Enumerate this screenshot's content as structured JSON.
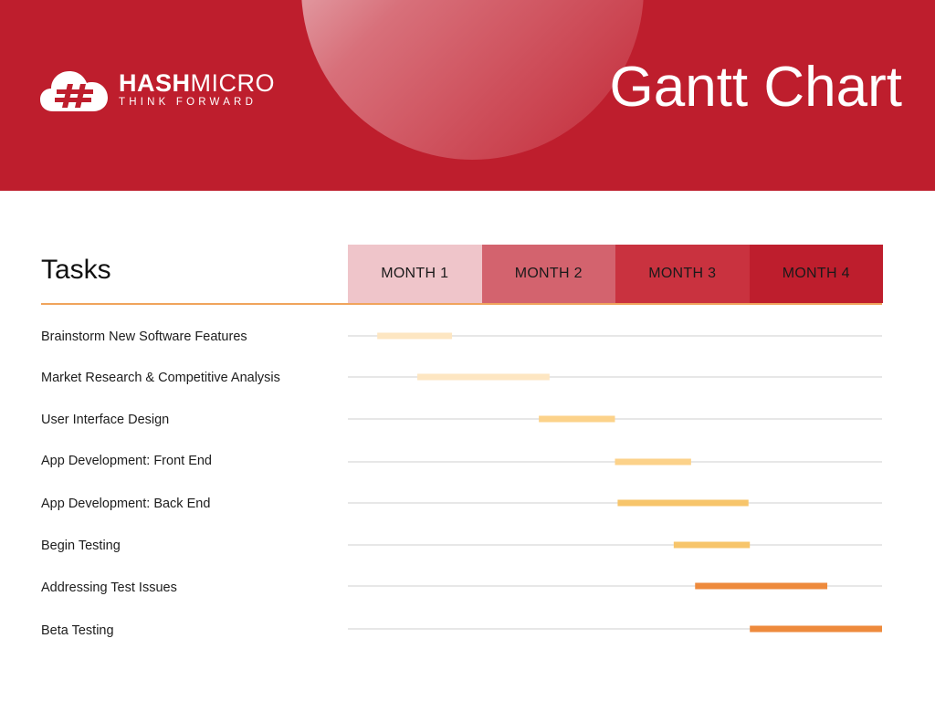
{
  "brand": {
    "name_bold": "HASH",
    "name_light": "MICRO",
    "tagline": "THINK FORWARD"
  },
  "title": "Gantt Chart",
  "tasks_heading": "Tasks",
  "colors": {
    "header_red": "#be1e2d",
    "month_1": "#efc5ca",
    "month_2": "#d3636e",
    "month_3": "#c9323f",
    "month_4": "#be1e2d",
    "grid_line": "#cfcfcf",
    "rule_orange": "#f0a45c"
  },
  "chart_data": {
    "type": "gantt",
    "x_unit": "month",
    "xlim": [
      0,
      4
    ],
    "categories": [
      "MONTH 1",
      "MONTH 2",
      "MONTH 3",
      "MONTH 4"
    ],
    "tasks": [
      {
        "name": "Brainstorm New Software Features",
        "start": 0.22,
        "end": 0.78,
        "color": "#fde6c2"
      },
      {
        "name": "Market Research & Competitive Analysis",
        "start": 0.52,
        "end": 1.51,
        "color": "#fde6c2"
      },
      {
        "name": "User Interface Design",
        "start": 1.43,
        "end": 2.0,
        "color": "#fcd28a"
      },
      {
        "name": "App Development: Front End",
        "start": 2.0,
        "end": 2.57,
        "color": "#fcd28a"
      },
      {
        "name": "App Development: Back End",
        "start": 2.02,
        "end": 3.0,
        "color": "#f7c56b"
      },
      {
        "name": "Begin Testing",
        "start": 2.44,
        "end": 3.01,
        "color": "#f7c56b"
      },
      {
        "name": "Addressing Test Issues",
        "start": 2.6,
        "end": 3.59,
        "color": "#ee8a3c"
      },
      {
        "name": "Beta Testing",
        "start": 3.01,
        "end": 4.0,
        "color": "#ee8a3c"
      }
    ]
  }
}
